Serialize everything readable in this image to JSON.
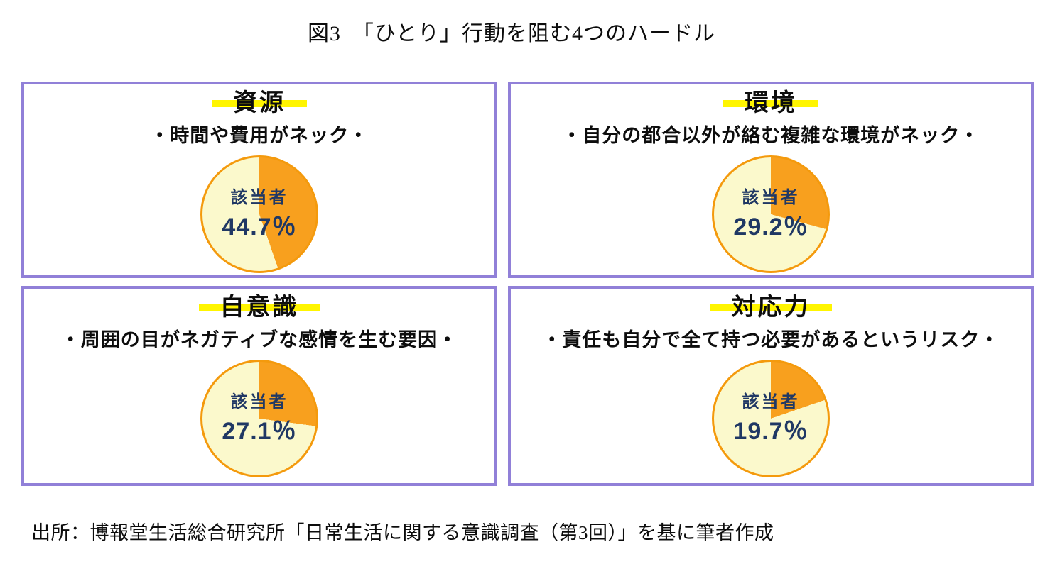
{
  "page_title": "図3　「ひとり」行動を阻む4つのハードル",
  "source_note": "出所：博報堂生活総合研究所「日常生活に関する意識調査（第3回）」を基に筆者作成",
  "colors": {
    "panel_border": "#9180d8",
    "highlight_yellow": "#fff500",
    "slice_orange": "#f8a01e",
    "slice_cream": "#fbf9cc",
    "pie_outline": "#f49a0d",
    "navy_text": "#203864",
    "text_black": "#0d0d0d"
  },
  "chart_data": [
    {
      "type": "pie",
      "title": "資源",
      "subtitle": "・時間や費用がネック・",
      "center_label": "該当者",
      "display_value": "44.7％",
      "legend": "none",
      "slices": [
        {
          "label": "該当者",
          "value": 44.7,
          "color": "#f8a01e"
        },
        {
          "label": "",
          "value": 55.3,
          "color": "#fbf9cc"
        }
      ]
    },
    {
      "type": "pie",
      "title": "環境",
      "subtitle": "・自分の都合以外が絡む複雑な環境がネック・",
      "center_label": "該当者",
      "display_value": "29.2％",
      "legend": "none",
      "slices": [
        {
          "label": "該当者",
          "value": 29.2,
          "color": "#f8a01e"
        },
        {
          "label": "",
          "value": 70.8,
          "color": "#fbf9cc"
        }
      ]
    },
    {
      "type": "pie",
      "title": "自意識",
      "subtitle": "・周囲の目がネガティブな感情を生む要因・",
      "center_label": "該当者",
      "display_value": "27.1％",
      "legend": "none",
      "slices": [
        {
          "label": "該当者",
          "value": 27.1,
          "color": "#f8a01e"
        },
        {
          "label": "",
          "value": 72.9,
          "color": "#fbf9cc"
        }
      ]
    },
    {
      "type": "pie",
      "title": "対応力",
      "subtitle": "・責任も自分で全て持つ必要があるというリスク・",
      "center_label": "該当者",
      "display_value": "19.7％",
      "legend": "none",
      "slices": [
        {
          "label": "該当者",
          "value": 19.7,
          "color": "#f8a01e"
        },
        {
          "label": "",
          "value": 80.3,
          "color": "#fbf9cc"
        }
      ]
    }
  ]
}
